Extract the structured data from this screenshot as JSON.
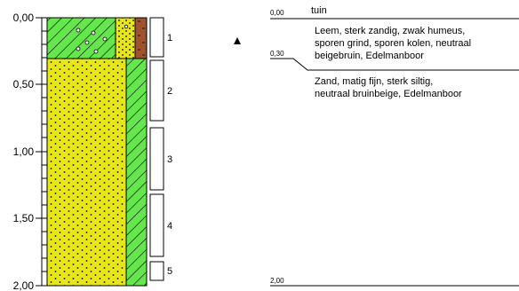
{
  "depth_axis": {
    "ticks": [
      "0,00",
      "0,50",
      "1,00",
      "1,50",
      "2,00"
    ]
  },
  "samples": [
    "1",
    "2",
    "3",
    "4",
    "5"
  ],
  "description": {
    "top_label": "0,00",
    "top_text": "tuin",
    "layer1_lines": [
      "Leem, sterk zandig, zwak humeus,",
      "sporen grind, sporen kolen, neutraal",
      "beigebruin,  Edelmanboor"
    ],
    "boundary_label": "0,30",
    "layer2_lines": [
      "Zand, matig fijn, sterk siltig,",
      "neutraal bruinbeige, Edelmanboor"
    ],
    "bottom_label": "2,00"
  },
  "colors": {
    "loam": "#66e64d",
    "sand": "#e6e619",
    "humus": "#a0522d"
  }
}
